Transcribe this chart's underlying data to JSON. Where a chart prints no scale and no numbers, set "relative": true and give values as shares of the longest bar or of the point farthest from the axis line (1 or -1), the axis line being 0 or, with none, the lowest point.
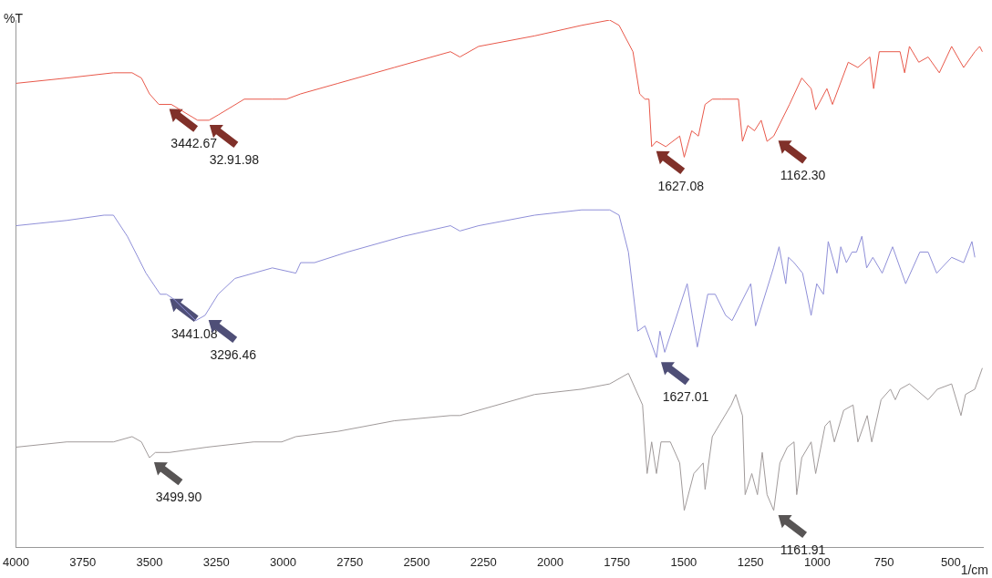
{
  "chart_data": {
    "type": "line",
    "relative": true,
    "xlabel": "1/cm",
    "ylabel": "%T",
    "xlim": [
      4000,
      380
    ],
    "xticks": [
      4000,
      3750,
      3500,
      3250,
      3000,
      2750,
      2500,
      2250,
      2000,
      1750,
      1500,
      1250,
      1000,
      750,
      500
    ],
    "grid": false,
    "legend": false,
    "series": [
      {
        "color": "#e8584a",
        "x": [
          4000,
          3810,
          3635,
          3565,
          3530,
          3500,
          3465,
          3418,
          3320,
          3277,
          3243,
          3145,
          3040,
          2987,
          2934,
          2794,
          2584,
          2373,
          2338,
          2268,
          2058,
          1882,
          1777,
          1742,
          1690,
          1665,
          1645,
          1630,
          1620,
          1602,
          1567,
          1515,
          1498,
          1470,
          1445,
          1420,
          1393,
          1357,
          1295,
          1280,
          1260,
          1235,
          1210,
          1188,
          1163,
          1104,
          1058,
          1023,
          1006,
          964,
          943,
          884,
          848,
          803,
          789,
          768,
          690,
          673,
          655,
          620,
          585,
          543,
          497,
          452,
          410,
          392,
          382
        ],
        "values": [
          0.88,
          0.89,
          0.9,
          0.9,
          0.89,
          0.86,
          0.84,
          0.84,
          0.81,
          0.81,
          0.82,
          0.85,
          0.85,
          0.85,
          0.86,
          0.88,
          0.91,
          0.94,
          0.93,
          0.95,
          0.97,
          0.99,
          1.0,
          0.99,
          0.94,
          0.86,
          0.85,
          0.85,
          0.76,
          0.77,
          0.76,
          0.78,
          0.74,
          0.79,
          0.78,
          0.84,
          0.85,
          0.85,
          0.85,
          0.77,
          0.8,
          0.79,
          0.81,
          0.77,
          0.78,
          0.84,
          0.89,
          0.87,
          0.83,
          0.87,
          0.84,
          0.92,
          0.91,
          0.93,
          0.87,
          0.94,
          0.94,
          0.9,
          0.95,
          0.92,
          0.93,
          0.9,
          0.95,
          0.91,
          0.94,
          0.95,
          0.94
        ]
      },
      {
        "color": "#8f8fd8",
        "x": [
          4000,
          3810,
          3670,
          3635,
          3583,
          3513,
          3460,
          3436,
          3407,
          3327,
          3292,
          3243,
          3180,
          3040,
          2952,
          2934,
          2882,
          2759,
          2548,
          2373,
          2338,
          2268,
          2058,
          1882,
          1777,
          1742,
          1707,
          1672,
          1645,
          1602,
          1589,
          1571,
          1487,
          1449,
          1410,
          1382,
          1343,
          1319,
          1249,
          1231,
          1164,
          1143,
          1118,
          1108,
          1087,
          1055,
          1023,
          1002,
          977,
          959,
          926,
          912,
          891,
          870,
          853,
          833,
          815,
          792,
          757,
          718,
          669,
          616,
          585,
          553,
          497,
          452,
          421,
          410
        ],
        "values": [
          0.61,
          0.62,
          0.63,
          0.63,
          0.59,
          0.52,
          0.48,
          0.48,
          0.47,
          0.43,
          0.44,
          0.48,
          0.51,
          0.53,
          0.52,
          0.54,
          0.54,
          0.56,
          0.59,
          0.61,
          0.6,
          0.61,
          0.63,
          0.64,
          0.64,
          0.63,
          0.56,
          0.41,
          0.42,
          0.36,
          0.41,
          0.37,
          0.5,
          0.38,
          0.48,
          0.48,
          0.44,
          0.43,
          0.5,
          0.42,
          0.53,
          0.57,
          0.5,
          0.55,
          0.54,
          0.52,
          0.44,
          0.5,
          0.48,
          0.58,
          0.52,
          0.57,
          0.54,
          0.56,
          0.56,
          0.59,
          0.53,
          0.55,
          0.52,
          0.57,
          0.5,
          0.56,
          0.56,
          0.52,
          0.55,
          0.54,
          0.58,
          0.55
        ]
      },
      {
        "color": "#a09a9a",
        "x": [
          4000,
          3810,
          3635,
          3565,
          3530,
          3500,
          3478,
          3425,
          3285,
          3110,
          3005,
          2952,
          2794,
          2584,
          2373,
          2338,
          2268,
          2058,
          1882,
          1777,
          1707,
          1654,
          1637,
          1620,
          1602,
          1585,
          1550,
          1515,
          1498,
          1462,
          1427,
          1420,
          1393,
          1322,
          1305,
          1280,
          1270,
          1245,
          1224,
          1206,
          1188,
          1163,
          1140,
          1112,
          1087,
          1077,
          1058,
          1023,
          1006,
          971,
          953,
          936,
          901,
          866,
          848,
          813,
          796,
          761,
          726,
          708,
          690,
          655,
          585,
          550,
          497,
          462,
          445,
          410,
          382
        ],
        "values": [
          0.19,
          0.2,
          0.2,
          0.21,
          0.2,
          0.17,
          0.18,
          0.18,
          0.19,
          0.2,
          0.2,
          0.21,
          0.22,
          0.24,
          0.25,
          0.25,
          0.26,
          0.29,
          0.3,
          0.31,
          0.33,
          0.27,
          0.14,
          0.2,
          0.14,
          0.2,
          0.2,
          0.16,
          0.07,
          0.14,
          0.16,
          0.11,
          0.21,
          0.27,
          0.29,
          0.25,
          0.1,
          0.14,
          0.1,
          0.18,
          0.1,
          0.07,
          0.16,
          0.19,
          0.2,
          0.1,
          0.17,
          0.2,
          0.14,
          0.23,
          0.24,
          0.2,
          0.26,
          0.27,
          0.2,
          0.25,
          0.2,
          0.28,
          0.3,
          0.28,
          0.3,
          0.31,
          0.28,
          0.3,
          0.31,
          0.25,
          0.29,
          0.3,
          0.34
        ]
      }
    ],
    "annotations": [
      {
        "text": "3442.67",
        "x": 3443,
        "y": 0.84
      },
      {
        "text": "32.91.98",
        "x": 3292,
        "y": 0.81
      },
      {
        "text": "1627.08",
        "x": 1620,
        "y": 0.76
      },
      {
        "text": "1162.30",
        "x": 1163,
        "y": 0.78
      },
      {
        "text": "3441.08",
        "x": 3441,
        "y": 0.48
      },
      {
        "text": "3296.46",
        "x": 3296,
        "y": 0.44
      },
      {
        "text": "1627.01",
        "x": 1602,
        "y": 0.36
      },
      {
        "text": "3499.90",
        "x": 3500,
        "y": 0.17
      },
      {
        "text": "1161.91",
        "x": 1163,
        "y": 0.07
      }
    ]
  }
}
